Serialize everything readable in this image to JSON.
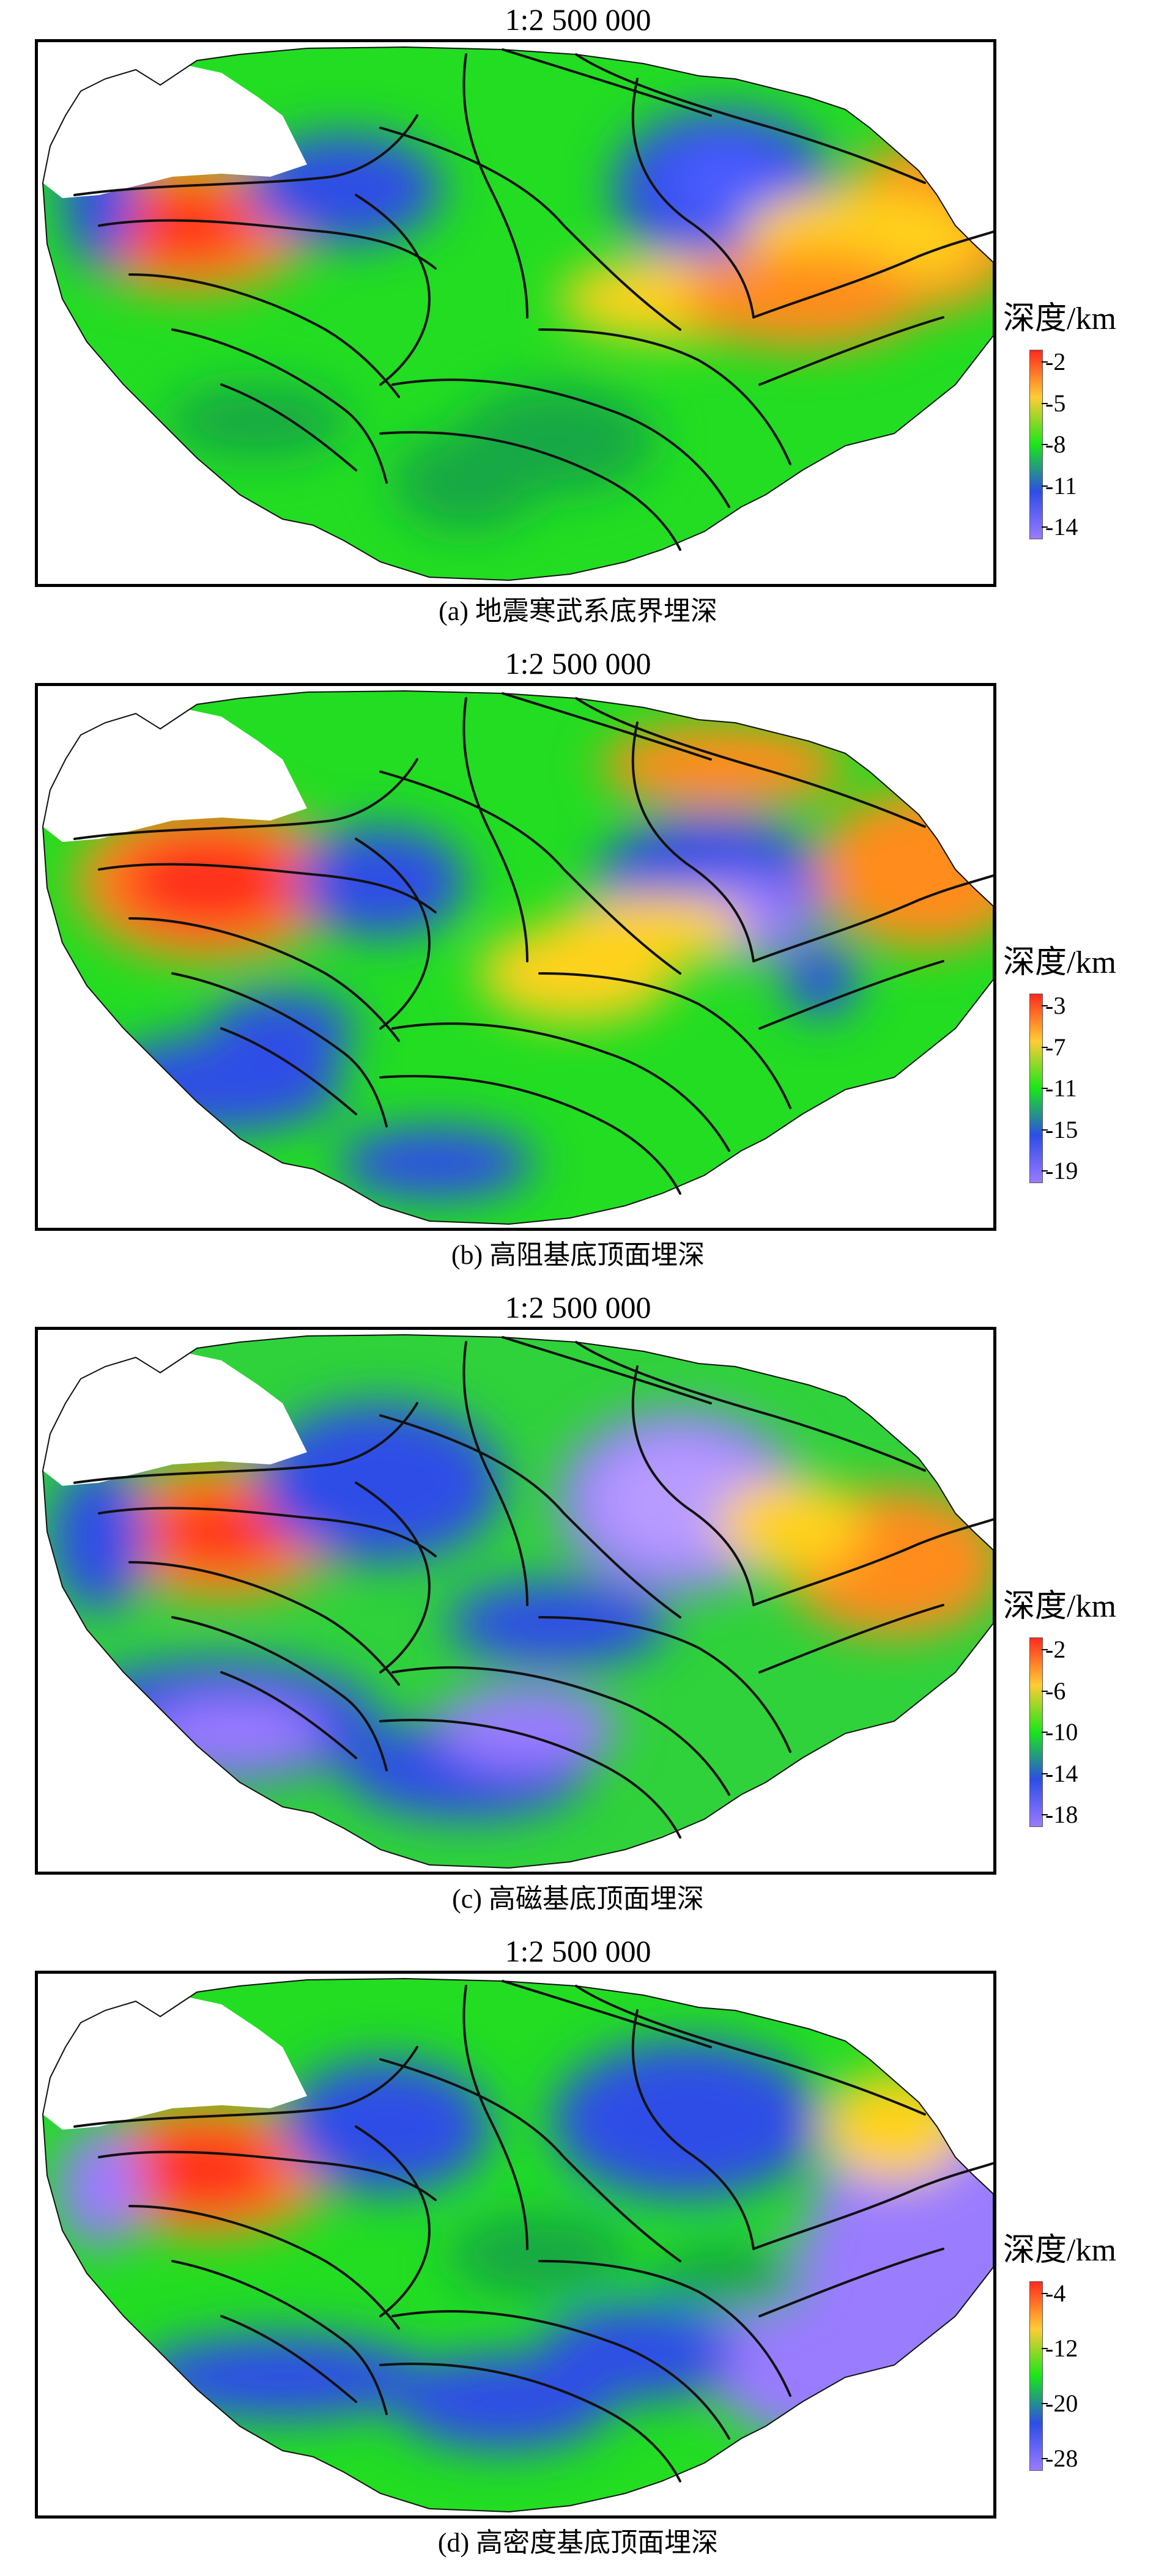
{
  "panels": [
    {
      "scale": "1:2 500 000",
      "caption": "(a) 地震寒武系底界埋深",
      "legend_title": "深度/km",
      "ticks": [
        "-2",
        "-5",
        "-8",
        "-11",
        "-14"
      ],
      "colors": [
        "#ff2a1e",
        "#ffcc33",
        "#19e61a",
        "#2d4de6",
        "#9a7bff"
      ]
    },
    {
      "scale": "1:2 500 000",
      "caption": "(b) 高阻基底顶面埋深",
      "legend_title": "深度/km",
      "ticks": [
        "-3",
        "-7",
        "-11",
        "-15",
        "-19"
      ],
      "colors": [
        "#ff2a1e",
        "#ffcc33",
        "#19e61a",
        "#2d4de6",
        "#9a7bff"
      ]
    },
    {
      "scale": "1:2 500 000",
      "caption": "(c) 高磁基底顶面埋深",
      "legend_title": "深度/km",
      "ticks": [
        "-2",
        "-6",
        "-10",
        "-14",
        "-18"
      ],
      "colors": [
        "#ff2a1e",
        "#ffcc33",
        "#19e61a",
        "#2d4de6",
        "#9a7bff"
      ]
    },
    {
      "scale": "1:2 500 000",
      "caption": "(d) 高密度基底顶面埋深",
      "legend_title": "深度/km",
      "ticks": [
        "-4",
        "-12",
        "-20",
        "-28"
      ],
      "colors": [
        "#ff2a1e",
        "#ffcc33",
        "#19e61a",
        "#2d4de6",
        "#9a7bff"
      ]
    }
  ]
}
